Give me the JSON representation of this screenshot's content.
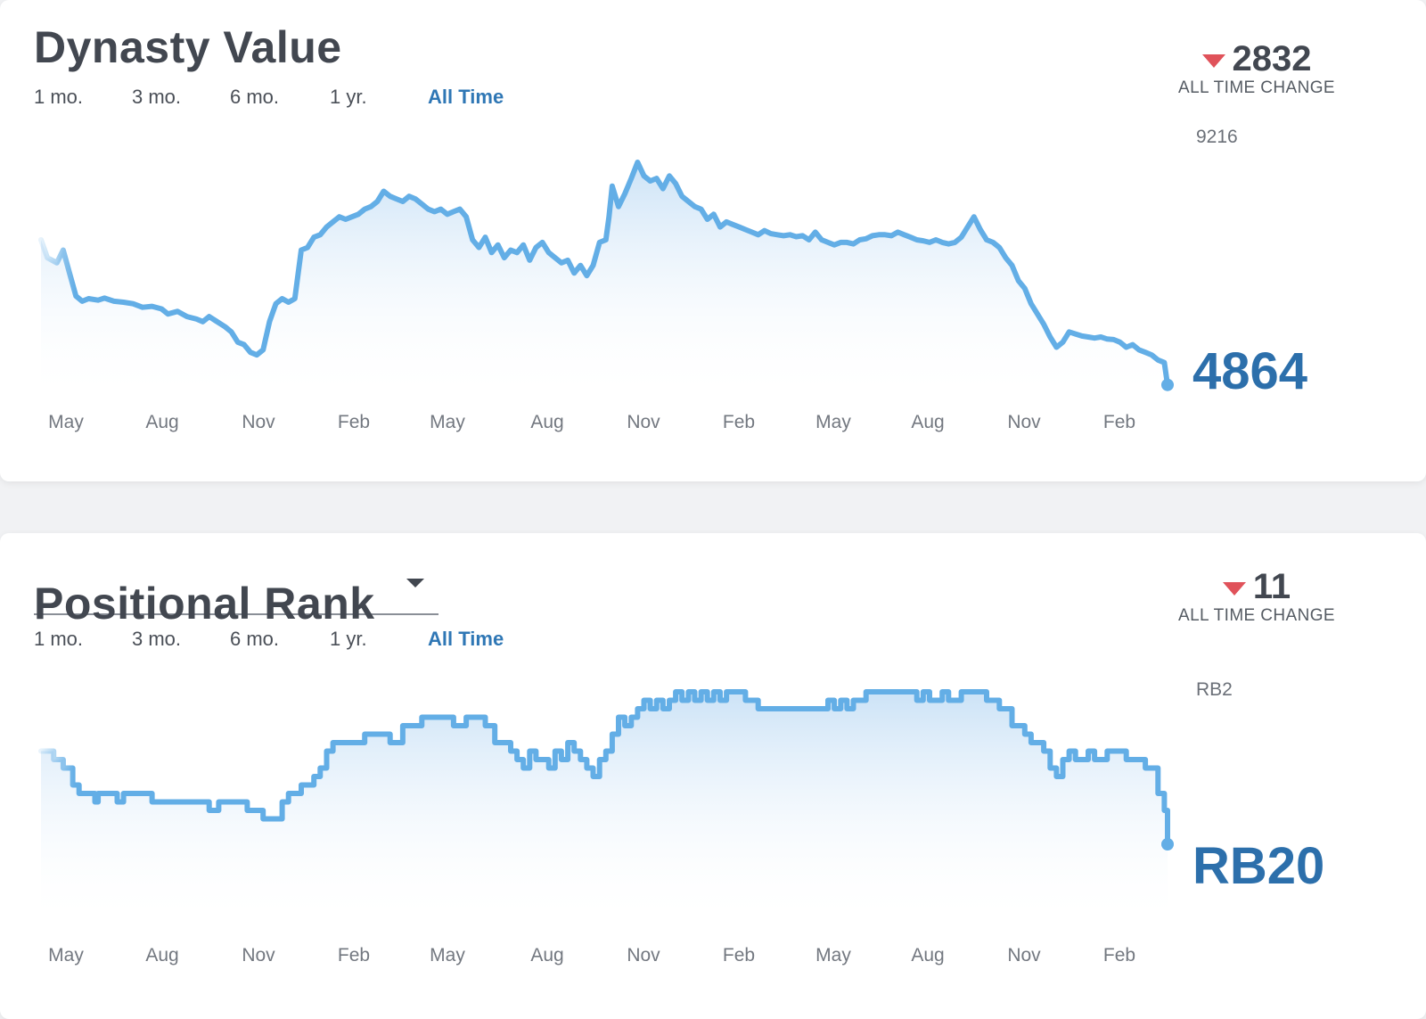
{
  "colors": {
    "line": "#63aee6",
    "fill_top": "#c9e1f6",
    "accent_blue": "#2f77b5",
    "current_value": "#2c6fab",
    "down_arrow": "#e0525a",
    "title": "#424750"
  },
  "range_options": [
    "1 mo.",
    "3 mo.",
    "6 mo.",
    "1 yr.",
    "All Time"
  ],
  "selected_range": "All Time",
  "icons": {
    "change_direction": "triangle-down-icon",
    "dropdown": "caret-down-icon"
  },
  "chart_data": [
    {
      "type": "area",
      "title": "Dynasty Value",
      "change_label": "ALL TIME CHANGE",
      "change_value": "2832",
      "change_direction": "down",
      "peak_label": "9216",
      "current_label": "4864",
      "x_ticks": [
        "May",
        "Aug",
        "Nov",
        "Feb",
        "May",
        "Aug",
        "Nov",
        "Feb",
        "May",
        "Aug",
        "Nov",
        "Feb"
      ],
      "ylim": [
        3500,
        9216
      ],
      "step": false,
      "points": [
        [
          0.0,
          7700
        ],
        [
          0.2,
          7350
        ],
        [
          0.5,
          7250
        ],
        [
          0.7,
          7500
        ],
        [
          0.9,
          7050
        ],
        [
          1.1,
          6600
        ],
        [
          1.3,
          6500
        ],
        [
          1.5,
          6550
        ],
        [
          1.8,
          6520
        ],
        [
          2.0,
          6560
        ],
        [
          2.3,
          6500
        ],
        [
          2.6,
          6480
        ],
        [
          2.9,
          6450
        ],
        [
          3.2,
          6380
        ],
        [
          3.5,
          6400
        ],
        [
          3.8,
          6350
        ],
        [
          4.0,
          6250
        ],
        [
          4.3,
          6300
        ],
        [
          4.6,
          6200
        ],
        [
          4.9,
          6150
        ],
        [
          5.1,
          6100
        ],
        [
          5.3,
          6200
        ],
        [
          5.5,
          6120
        ],
        [
          5.8,
          6000
        ],
        [
          6.0,
          5900
        ],
        [
          6.2,
          5700
        ],
        [
          6.4,
          5650
        ],
        [
          6.6,
          5500
        ],
        [
          6.8,
          5450
        ],
        [
          7.0,
          5550
        ],
        [
          7.2,
          6100
        ],
        [
          7.4,
          6450
        ],
        [
          7.6,
          6550
        ],
        [
          7.8,
          6480
        ],
        [
          8.0,
          6550
        ],
        [
          8.2,
          7500
        ],
        [
          8.4,
          7550
        ],
        [
          8.6,
          7750
        ],
        [
          8.8,
          7800
        ],
        [
          9.0,
          7950
        ],
        [
          9.2,
          8050
        ],
        [
          9.4,
          8150
        ],
        [
          9.6,
          8100
        ],
        [
          9.8,
          8150
        ],
        [
          10.0,
          8200
        ],
        [
          10.2,
          8300
        ],
        [
          10.4,
          8350
        ],
        [
          10.6,
          8450
        ],
        [
          10.8,
          8650
        ],
        [
          11.0,
          8550
        ],
        [
          11.2,
          8500
        ],
        [
          11.4,
          8450
        ],
        [
          11.6,
          8550
        ],
        [
          11.8,
          8500
        ],
        [
          12.0,
          8400
        ],
        [
          12.2,
          8300
        ],
        [
          12.4,
          8250
        ],
        [
          12.6,
          8300
        ],
        [
          12.8,
          8200
        ],
        [
          13.0,
          8250
        ],
        [
          13.2,
          8300
        ],
        [
          13.4,
          8150
        ],
        [
          13.6,
          7700
        ],
        [
          13.8,
          7550
        ],
        [
          14.0,
          7750
        ],
        [
          14.2,
          7450
        ],
        [
          14.4,
          7600
        ],
        [
          14.6,
          7350
        ],
        [
          14.8,
          7500
        ],
        [
          15.0,
          7450
        ],
        [
          15.2,
          7600
        ],
        [
          15.4,
          7300
        ],
        [
          15.6,
          7550
        ],
        [
          15.8,
          7650
        ],
        [
          16.0,
          7450
        ],
        [
          16.2,
          7350
        ],
        [
          16.4,
          7250
        ],
        [
          16.6,
          7300
        ],
        [
          16.8,
          7050
        ],
        [
          17.0,
          7200
        ],
        [
          17.2,
          7000
        ],
        [
          17.4,
          7200
        ],
        [
          17.6,
          7650
        ],
        [
          17.8,
          7700
        ],
        [
          17.9,
          8150
        ],
        [
          18.0,
          8750
        ],
        [
          18.2,
          8350
        ],
        [
          18.4,
          8600
        ],
        [
          18.6,
          8900
        ],
        [
          18.8,
          9216
        ],
        [
          19.0,
          8950
        ],
        [
          19.2,
          8850
        ],
        [
          19.4,
          8900
        ],
        [
          19.6,
          8700
        ],
        [
          19.8,
          8950
        ],
        [
          20.0,
          8800
        ],
        [
          20.2,
          8550
        ],
        [
          20.4,
          8450
        ],
        [
          20.6,
          8350
        ],
        [
          20.8,
          8300
        ],
        [
          21.0,
          8100
        ],
        [
          21.2,
          8200
        ],
        [
          21.4,
          7950
        ],
        [
          21.6,
          8050
        ],
        [
          21.8,
          8000
        ],
        [
          22.0,
          7950
        ],
        [
          22.2,
          7900
        ],
        [
          22.4,
          7850
        ],
        [
          22.6,
          7800
        ],
        [
          22.8,
          7880
        ],
        [
          23.0,
          7820
        ],
        [
          23.2,
          7800
        ],
        [
          23.4,
          7780
        ],
        [
          23.6,
          7800
        ],
        [
          23.8,
          7760
        ],
        [
          24.0,
          7780
        ],
        [
          24.2,
          7700
        ],
        [
          24.4,
          7850
        ],
        [
          24.6,
          7700
        ],
        [
          24.8,
          7650
        ],
        [
          25.0,
          7600
        ],
        [
          25.2,
          7650
        ],
        [
          25.4,
          7650
        ],
        [
          25.6,
          7620
        ],
        [
          25.8,
          7700
        ],
        [
          26.0,
          7720
        ],
        [
          26.2,
          7780
        ],
        [
          26.4,
          7800
        ],
        [
          26.6,
          7800
        ],
        [
          26.8,
          7780
        ],
        [
          27.0,
          7850
        ],
        [
          27.2,
          7800
        ],
        [
          27.4,
          7750
        ],
        [
          27.6,
          7700
        ],
        [
          27.8,
          7680
        ],
        [
          28.0,
          7650
        ],
        [
          28.2,
          7700
        ],
        [
          28.4,
          7650
        ],
        [
          28.6,
          7620
        ],
        [
          28.8,
          7650
        ],
        [
          29.0,
          7750
        ],
        [
          29.2,
          7950
        ],
        [
          29.4,
          8150
        ],
        [
          29.6,
          7900
        ],
        [
          29.8,
          7700
        ],
        [
          30.0,
          7650
        ],
        [
          30.2,
          7550
        ],
        [
          30.4,
          7350
        ],
        [
          30.6,
          7200
        ],
        [
          30.8,
          6900
        ],
        [
          31.0,
          6750
        ],
        [
          31.2,
          6450
        ],
        [
          31.4,
          6250
        ],
        [
          31.6,
          6050
        ],
        [
          31.8,
          5800
        ],
        [
          32.0,
          5600
        ],
        [
          32.2,
          5700
        ],
        [
          32.4,
          5900
        ],
        [
          32.6,
          5860
        ],
        [
          32.8,
          5820
        ],
        [
          33.0,
          5800
        ],
        [
          33.2,
          5780
        ],
        [
          33.4,
          5800
        ],
        [
          33.6,
          5760
        ],
        [
          33.8,
          5750
        ],
        [
          34.0,
          5700
        ],
        [
          34.2,
          5600
        ],
        [
          34.4,
          5650
        ],
        [
          34.6,
          5550
        ],
        [
          34.8,
          5500
        ],
        [
          35.0,
          5450
        ],
        [
          35.2,
          5350
        ],
        [
          35.4,
          5300
        ],
        [
          35.5,
          4864
        ]
      ]
    },
    {
      "type": "area",
      "title": "Positional Rank",
      "change_label": "ALL TIME CHANGE",
      "change_value": "11",
      "change_direction": "down",
      "peak_label": "RB2",
      "current_label": "RB20",
      "x_ticks": [
        "May",
        "Aug",
        "Nov",
        "Feb",
        "May",
        "Aug",
        "Nov",
        "Feb",
        "May",
        "Aug",
        "Nov",
        "Feb"
      ],
      "ylim": [
        2,
        24
      ],
      "inverted": true,
      "step": true,
      "points": [
        [
          0.0,
          9
        ],
        [
          0.3,
          9
        ],
        [
          0.4,
          10
        ],
        [
          0.6,
          10
        ],
        [
          0.7,
          11
        ],
        [
          0.9,
          11
        ],
        [
          1.0,
          13
        ],
        [
          1.1,
          13
        ],
        [
          1.2,
          14
        ],
        [
          1.5,
          14
        ],
        [
          1.7,
          15
        ],
        [
          1.8,
          14
        ],
        [
          2.2,
          14
        ],
        [
          2.4,
          15
        ],
        [
          2.6,
          14
        ],
        [
          3.0,
          14
        ],
        [
          3.5,
          15
        ],
        [
          4.0,
          15
        ],
        [
          4.5,
          15
        ],
        [
          5.0,
          15
        ],
        [
          5.3,
          16
        ],
        [
          5.6,
          15
        ],
        [
          6.0,
          15
        ],
        [
          6.5,
          16
        ],
        [
          6.8,
          16
        ],
        [
          7.0,
          17
        ],
        [
          7.4,
          17
        ],
        [
          7.6,
          15
        ],
        [
          7.8,
          14
        ],
        [
          8.0,
          14
        ],
        [
          8.2,
          13
        ],
        [
          8.4,
          13
        ],
        [
          8.6,
          12
        ],
        [
          8.8,
          11
        ],
        [
          9.0,
          9
        ],
        [
          9.2,
          8
        ],
        [
          9.6,
          8
        ],
        [
          10.0,
          8
        ],
        [
          10.2,
          7
        ],
        [
          10.6,
          7
        ],
        [
          11.0,
          8
        ],
        [
          11.2,
          8
        ],
        [
          11.4,
          6
        ],
        [
          11.8,
          6
        ],
        [
          12.0,
          5
        ],
        [
          12.4,
          5
        ],
        [
          12.8,
          5
        ],
        [
          13.0,
          6
        ],
        [
          13.2,
          6
        ],
        [
          13.4,
          5
        ],
        [
          13.8,
          5
        ],
        [
          14.0,
          6
        ],
        [
          14.2,
          6
        ],
        [
          14.3,
          8
        ],
        [
          14.6,
          8
        ],
        [
          14.8,
          9
        ],
        [
          15.0,
          10
        ],
        [
          15.2,
          11
        ],
        [
          15.4,
          9
        ],
        [
          15.6,
          10
        ],
        [
          15.8,
          10
        ],
        [
          16.0,
          11
        ],
        [
          16.2,
          9
        ],
        [
          16.4,
          10
        ],
        [
          16.6,
          8
        ],
        [
          16.8,
          9
        ],
        [
          17.0,
          10
        ],
        [
          17.2,
          11
        ],
        [
          17.4,
          12
        ],
        [
          17.6,
          10
        ],
        [
          17.8,
          9
        ],
        [
          18.0,
          7
        ],
        [
          18.2,
          5
        ],
        [
          18.4,
          6
        ],
        [
          18.6,
          5
        ],
        [
          18.8,
          4
        ],
        [
          19.0,
          3
        ],
        [
          19.2,
          4
        ],
        [
          19.4,
          3
        ],
        [
          19.6,
          4
        ],
        [
          19.8,
          3
        ],
        [
          20.0,
          2
        ],
        [
          20.2,
          3
        ],
        [
          20.4,
          2
        ],
        [
          20.6,
          3
        ],
        [
          20.8,
          2
        ],
        [
          21.0,
          3
        ],
        [
          21.2,
          2
        ],
        [
          21.4,
          3
        ],
        [
          21.6,
          2
        ],
        [
          22.0,
          2
        ],
        [
          22.2,
          3
        ],
        [
          22.4,
          3
        ],
        [
          22.6,
          4
        ],
        [
          23.0,
          4
        ],
        [
          23.4,
          4
        ],
        [
          23.8,
          4
        ],
        [
          24.2,
          4
        ],
        [
          24.6,
          4
        ],
        [
          24.8,
          3
        ],
        [
          25.0,
          4
        ],
        [
          25.2,
          3
        ],
        [
          25.4,
          4
        ],
        [
          25.6,
          3
        ],
        [
          25.8,
          3
        ],
        [
          26.0,
          2
        ],
        [
          26.4,
          2
        ],
        [
          26.8,
          2
        ],
        [
          27.2,
          2
        ],
        [
          27.6,
          3
        ],
        [
          27.8,
          2
        ],
        [
          28.0,
          3
        ],
        [
          28.2,
          3
        ],
        [
          28.4,
          2
        ],
        [
          28.6,
          3
        ],
        [
          28.8,
          3
        ],
        [
          29.0,
          2
        ],
        [
          29.4,
          2
        ],
        [
          29.8,
          3
        ],
        [
          30.0,
          3
        ],
        [
          30.2,
          4
        ],
        [
          30.4,
          4
        ],
        [
          30.6,
          6
        ],
        [
          30.8,
          6
        ],
        [
          31.0,
          7
        ],
        [
          31.2,
          8
        ],
        [
          31.4,
          8
        ],
        [
          31.6,
          9
        ],
        [
          31.8,
          11
        ],
        [
          32.0,
          12
        ],
        [
          32.2,
          10
        ],
        [
          32.4,
          9
        ],
        [
          32.6,
          10
        ],
        [
          32.8,
          10
        ],
        [
          33.0,
          9
        ],
        [
          33.2,
          10
        ],
        [
          33.4,
          10
        ],
        [
          33.6,
          9
        ],
        [
          33.8,
          9
        ],
        [
          34.0,
          9
        ],
        [
          34.2,
          10
        ],
        [
          34.4,
          10
        ],
        [
          34.6,
          10
        ],
        [
          34.8,
          11
        ],
        [
          35.0,
          11
        ],
        [
          35.2,
          14
        ],
        [
          35.4,
          16
        ],
        [
          35.5,
          20
        ]
      ]
    }
  ]
}
